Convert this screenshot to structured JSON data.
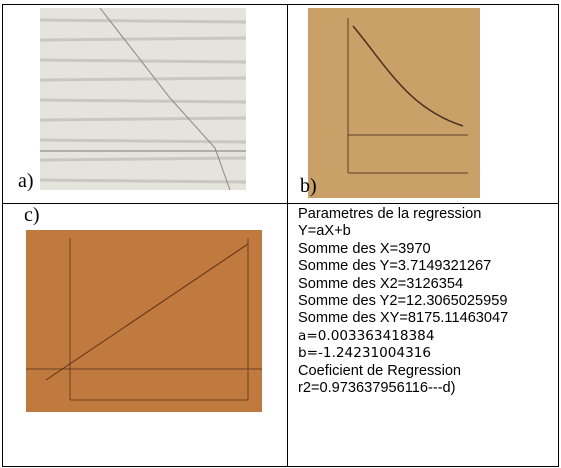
{
  "panels": {
    "a": {
      "label": "a)"
    },
    "b": {
      "label": "b)"
    },
    "c": {
      "label": "c)"
    },
    "d": {
      "lines": [
        "Parametres de la regression",
        "Y=aX+b",
        "Somme des X=3970",
        "Somme des Y=3.7149321267",
        "Somme des X2=3126354",
        "Somme des Y2=12.3065025959",
        "Somme des XY=8175.11463047",
        "a=0.003363418384",
        "b=-1.24231004316",
        "Coeficient de Regression",
        "r2=0.973637956116---d)"
      ]
    }
  }
}
